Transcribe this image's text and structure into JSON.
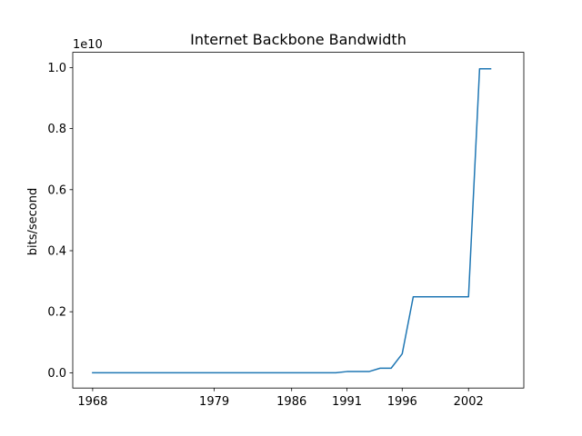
{
  "chart_data": {
    "type": "line",
    "title": "Internet Backbone Bandwidth",
    "xlabel": "",
    "ylabel": "bits/second",
    "y_offset_label": "1e10",
    "y_scale": 10000000000,
    "ylim": [
      -0.05,
      1.05
    ],
    "y_ticks": [
      0.0,
      0.2,
      0.4,
      0.6,
      0.8,
      1.0
    ],
    "y_tick_labels": [
      "0.0",
      "0.2",
      "0.4",
      "0.6",
      "0.8",
      "1.0"
    ],
    "x_ticks": [
      1968,
      1979,
      1986,
      1991,
      1996,
      2002
    ],
    "x_tick_labels": [
      "1968",
      "1979",
      "1986",
      "1991",
      "1996",
      "2002"
    ],
    "grid": false,
    "color": "#1f77b4",
    "series": [
      {
        "x": [
          1968,
          1979,
          1986,
          1990,
          1991,
          1993,
          1994,
          1995,
          1996,
          1997,
          2002,
          2003,
          2004
        ],
        "values": [
          0.0,
          0.0,
          0.0,
          0.0,
          0.004,
          0.004,
          0.015,
          0.015,
          0.062,
          0.249,
          0.249,
          0.996,
          0.996
        ]
      }
    ]
  }
}
